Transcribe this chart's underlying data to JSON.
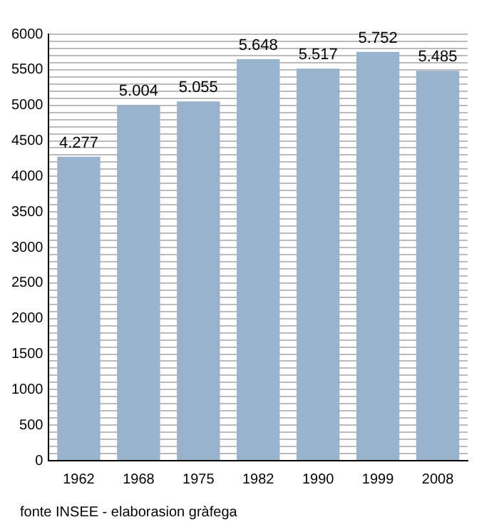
{
  "chart_data": {
    "type": "bar",
    "categories": [
      "1962",
      "1968",
      "1975",
      "1982",
      "1990",
      "1999",
      "2008"
    ],
    "values": [
      4277,
      5004,
      5055,
      5648,
      5517,
      5752,
      5485
    ],
    "value_labels": [
      "4.277",
      "5.004",
      "5.055",
      "5.648",
      "5.517",
      "5.752",
      "5.485"
    ],
    "color": "#9ab3cd",
    "ylim": [
      0,
      6000
    ],
    "yticks": [
      0,
      {
        "value": 100,
        "label": null
      },
      {
        "value": 200,
        "label": null
      },
      {
        "value": 300,
        "label": null
      },
      {
        "value": 400,
        "label": null
      },
      500,
      {
        "value": 600,
        "label": null
      },
      {
        "value": 700,
        "label": null
      },
      {
        "value": 800,
        "label": null
      },
      {
        "value": 900,
        "label": null
      },
      1000,
      {
        "value": 1100,
        "label": null
      },
      {
        "value": 1200,
        "label": null
      },
      {
        "value": 1300,
        "label": null
      },
      {
        "value": 1400,
        "label": null
      },
      1500,
      {
        "value": 1600,
        "label": null
      },
      {
        "value": 1700,
        "label": null
      },
      {
        "value": 1800,
        "label": null
      },
      {
        "value": 1900,
        "label": null
      },
      2000,
      {
        "value": 2100,
        "label": null
      },
      {
        "value": 2200,
        "label": null
      },
      {
        "value": 2300,
        "label": null
      },
      {
        "value": 2400,
        "label": null
      },
      2500,
      {
        "value": 2600,
        "label": null
      },
      {
        "value": 2700,
        "label": null
      },
      {
        "value": 2800,
        "label": null
      },
      {
        "value": 2900,
        "label": null
      },
      3000,
      {
        "value": 3100,
        "label": null
      },
      {
        "value": 3200,
        "label": null
      },
      {
        "value": 3300,
        "label": null
      },
      {
        "value": 3400,
        "label": null
      },
      3500,
      {
        "value": 3600,
        "label": null
      },
      {
        "value": 3700,
        "label": null
      },
      {
        "value": 3800,
        "label": null
      },
      {
        "value": 3900,
        "label": null
      },
      4000,
      {
        "value": 4100,
        "label": null
      },
      {
        "value": 4200,
        "label": null
      },
      {
        "value": 4300,
        "label": null
      },
      {
        "value": 4400,
        "label": null
      },
      4500,
      {
        "value": 4600,
        "label": null
      },
      {
        "value": 4700,
        "label": null
      },
      {
        "value": 4800,
        "label": null
      },
      {
        "value": 4900,
        "label": null
      },
      5000,
      {
        "value": 5100,
        "label": null
      },
      {
        "value": 5200,
        "label": null
      },
      {
        "value": 5300,
        "label": null
      },
      {
        "value": 5400,
        "label": null
      },
      5500,
      {
        "value": 5600,
        "label": null
      },
      {
        "value": 5700,
        "label": null
      },
      {
        "value": 5800,
        "label": null
      },
      {
        "value": 5900,
        "label": null
      },
      6000
    ],
    "grid": "y",
    "annotations": [
      "fonte INSEE - elaborasion gràfega"
    ]
  }
}
